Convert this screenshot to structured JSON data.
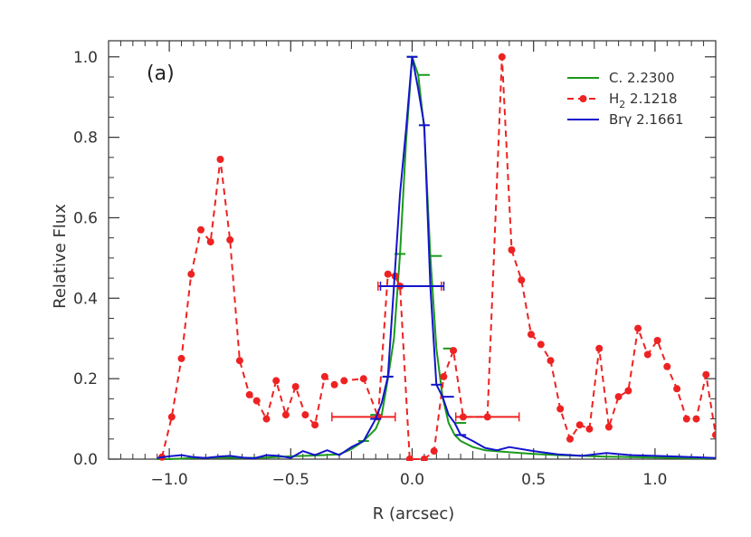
{
  "chart_data": {
    "type": "line",
    "panel_label": "(a)",
    "xlabel": "R (arcsec)",
    "ylabel": "Relative Flux",
    "xlim": [
      -1.25,
      1.25
    ],
    "ylim": [
      0.0,
      1.04
    ],
    "x_ticks": [
      -1.0,
      -0.5,
      0.0,
      0.5,
      1.0
    ],
    "x_tick_labels": [
      "−1.0",
      "−0.5",
      "0.0",
      "0.5",
      "1.0"
    ],
    "y_ticks": [
      0.0,
      0.2,
      0.4,
      0.6,
      0.8,
      1.0
    ],
    "y_tick_labels": [
      "0.0",
      "0.2",
      "0.4",
      "0.6",
      "0.8",
      "1.0"
    ],
    "legend_position": "top-right",
    "series": [
      {
        "name": "C. 2.2300",
        "color": "#1a9a1a",
        "style": "solid",
        "x": [
          -1.05,
          -1.0,
          -0.9,
          -0.8,
          -0.7,
          -0.6,
          -0.5,
          -0.4,
          -0.3,
          -0.25,
          -0.2,
          -0.15,
          -0.125,
          -0.1,
          -0.075,
          -0.05,
          -0.025,
          0.0,
          0.025,
          0.05,
          0.075,
          0.1,
          0.125,
          0.15,
          0.175,
          0.2,
          0.25,
          0.3,
          0.4,
          0.5,
          0.6,
          0.7,
          0.8,
          0.9,
          1.0,
          1.1,
          1.2,
          1.25
        ],
        "y": [
          0.0,
          0.0,
          0.003,
          0.004,
          0.003,
          0.004,
          0.007,
          0.009,
          0.012,
          0.025,
          0.045,
          0.075,
          0.11,
          0.2,
          0.3,
          0.51,
          0.79,
          1.0,
          0.955,
          0.82,
          0.505,
          0.275,
          0.155,
          0.09,
          0.06,
          0.045,
          0.03,
          0.022,
          0.017,
          0.013,
          0.01,
          0.008,
          0.006,
          0.005,
          0.004,
          0.003,
          0.002,
          0.002
        ],
        "error_bar_x": [
          -0.2,
          -0.15,
          -0.1,
          -0.05,
          0.0,
          0.05,
          0.1,
          0.15,
          0.2
        ],
        "error_bar_y": [
          0.045,
          0.11,
          0.205,
          0.51,
          1.0,
          0.955,
          0.505,
          0.275,
          0.09
        ]
      },
      {
        "name": "H₂ 2.1218",
        "legend_base": "H",
        "legend_sub": "2",
        "legend_rest": " 2.1218",
        "color": "#ee2222",
        "style": "dashed",
        "markers": true,
        "x": [
          -1.03,
          -0.99,
          -0.95,
          -0.91,
          -0.87,
          -0.83,
          -0.79,
          -0.75,
          -0.71,
          -0.67,
          -0.64,
          -0.6,
          -0.56,
          -0.52,
          -0.48,
          -0.44,
          -0.4,
          -0.36,
          -0.32,
          -0.28,
          -0.2,
          -0.14,
          -0.1,
          -0.07,
          -0.05,
          -0.01,
          0.05,
          0.09,
          0.13,
          0.17,
          0.21,
          0.31,
          0.37,
          0.41,
          0.45,
          0.49,
          0.53,
          0.57,
          0.61,
          0.65,
          0.69,
          0.73,
          0.77,
          0.81,
          0.85,
          0.89,
          0.93,
          0.97,
          1.01,
          1.05,
          1.09,
          1.13,
          1.17,
          1.21,
          1.25
        ],
        "y": [
          0.005,
          0.105,
          0.25,
          0.46,
          0.57,
          0.54,
          0.745,
          0.545,
          0.245,
          0.16,
          0.145,
          0.1,
          0.195,
          0.11,
          0.18,
          0.11,
          0.085,
          0.205,
          0.185,
          0.195,
          0.2,
          0.105,
          0.46,
          0.455,
          0.43,
          0.0,
          0.0,
          0.02,
          0.205,
          0.27,
          0.105,
          0.105,
          1.0,
          0.52,
          0.445,
          0.31,
          0.285,
          0.245,
          0.125,
          0.05,
          0.085,
          0.075,
          0.275,
          0.08,
          0.155,
          0.17,
          0.325,
          0.26,
          0.295,
          0.23,
          0.175,
          0.1,
          0.1,
          0.21,
          0.06
        ],
        "hbar_x": [
          -0.2,
          -0.01,
          0.31
        ],
        "hbar_y": [
          0.105,
          0.43,
          0.105
        ]
      },
      {
        "name": "Brγ 2.1661",
        "color": "#1414cc",
        "style": "solid",
        "x": [
          -1.05,
          -1.0,
          -0.95,
          -0.9,
          -0.85,
          -0.8,
          -0.75,
          -0.7,
          -0.65,
          -0.6,
          -0.55,
          -0.5,
          -0.45,
          -0.4,
          -0.35,
          -0.3,
          -0.25,
          -0.2,
          -0.15,
          -0.125,
          -0.1,
          -0.075,
          -0.05,
          -0.025,
          0.0,
          0.025,
          0.05,
          0.075,
          0.1,
          0.125,
          0.15,
          0.175,
          0.2,
          0.25,
          0.3,
          0.35,
          0.4,
          0.5,
          0.6,
          0.7,
          0.8,
          0.9,
          1.0,
          1.1,
          1.2,
          1.25
        ],
        "y": [
          0.003,
          0.007,
          0.01,
          0.005,
          0.003,
          0.006,
          0.008,
          0.004,
          0.002,
          0.01,
          0.008,
          0.003,
          0.02,
          0.01,
          0.022,
          0.01,
          0.03,
          0.045,
          0.1,
          0.14,
          0.205,
          0.43,
          0.66,
          0.82,
          1.0,
          0.92,
          0.83,
          0.43,
          0.185,
          0.155,
          0.11,
          0.09,
          0.06,
          0.045,
          0.028,
          0.022,
          0.03,
          0.02,
          0.012,
          0.008,
          0.015,
          0.01,
          0.008,
          0.006,
          0.004,
          0.003
        ],
        "error_bar_x": [
          -0.15,
          -0.1,
          -0.05,
          0.0,
          0.05,
          0.1,
          0.15,
          0.2
        ],
        "error_bar_y": [
          0.1,
          0.205,
          0.43,
          1.0,
          0.83,
          0.185,
          0.155,
          0.06
        ],
        "hbar_x": [
          0.0
        ],
        "hbar_y": [
          0.43
        ]
      }
    ]
  }
}
